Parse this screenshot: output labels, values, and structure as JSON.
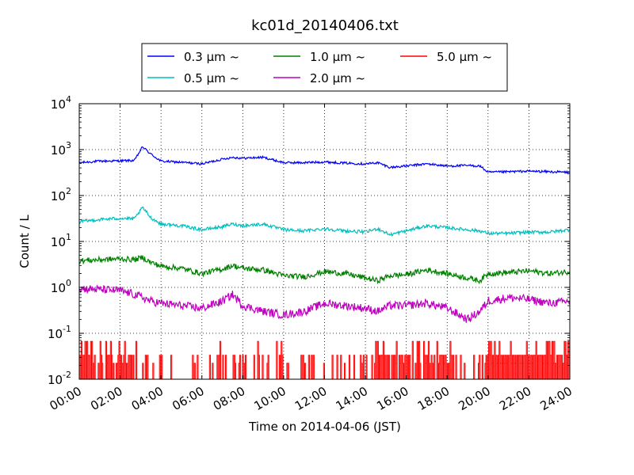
{
  "chart_data": {
    "type": "line",
    "title": "kc01d_20140406.txt",
    "xlabel": "Time on 2014-04-06 (JST)",
    "ylabel": "Count / L",
    "y_scale": "log",
    "ylim": [
      0.01,
      10000
    ],
    "xlim": [
      "00:00",
      "24:00"
    ],
    "x_ticks": [
      "00:00",
      "02:00",
      "04:00",
      "06:00",
      "08:00",
      "10:00",
      "12:00",
      "14:00",
      "16:00",
      "18:00",
      "20:00",
      "22:00",
      "24:00"
    ],
    "y_ticks": [
      {
        "base": "10",
        "exp": "-2"
      },
      {
        "base": "10",
        "exp": "-1"
      },
      {
        "base": "10",
        "exp": "0"
      },
      {
        "base": "10",
        "exp": "1"
      },
      {
        "base": "10",
        "exp": "2"
      },
      {
        "base": "10",
        "exp": "3"
      },
      {
        "base": "10",
        "exp": "4"
      }
    ],
    "grid": true,
    "legend_position": "top",
    "x_hours": [
      0,
      1,
      2,
      2.7,
      3.1,
      3.5,
      4,
      5,
      6,
      7,
      7.5,
      8,
      9,
      10,
      11,
      12,
      13,
      14,
      14.6,
      15.2,
      16,
      17,
      18,
      19,
      19.6,
      20,
      21,
      22,
      23,
      24
    ],
    "series": [
      {
        "name": "0.3 μm ~",
        "color": "#0000ff",
        "values": [
          520,
          560,
          570,
          580,
          1150,
          800,
          560,
          530,
          490,
          620,
          680,
          650,
          680,
          520,
          520,
          540,
          510,
          490,
          520,
          410,
          440,
          490,
          440,
          450,
          440,
          320,
          330,
          340,
          330,
          320
        ]
      },
      {
        "name": "0.5 μm ~",
        "color": "#00bfbf",
        "values": [
          27,
          30,
          32,
          31,
          55,
          33,
          24,
          22,
          18,
          21,
          24,
          22,
          24,
          18,
          17,
          19,
          17,
          16,
          19,
          14,
          17,
          22,
          20,
          18,
          17,
          15,
          15,
          16,
          16,
          18
        ]
      },
      {
        "name": "1.0 μm ~",
        "color": "#008000",
        "values": [
          3.8,
          4.0,
          4.2,
          4.0,
          4.5,
          3.5,
          2.9,
          2.6,
          2.0,
          2.5,
          3.0,
          2.6,
          2.4,
          1.8,
          1.7,
          2.2,
          2.0,
          1.6,
          1.4,
          1.8,
          1.9,
          2.4,
          2.0,
          1.6,
          1.4,
          2.0,
          2.1,
          2.3,
          2.0,
          2.2
        ]
      },
      {
        "name": "2.0 μm ~",
        "color": "#bf00bf",
        "values": [
          0.95,
          0.9,
          0.85,
          0.7,
          0.6,
          0.5,
          0.45,
          0.4,
          0.35,
          0.5,
          0.7,
          0.4,
          0.3,
          0.25,
          0.3,
          0.45,
          0.4,
          0.35,
          0.3,
          0.4,
          0.4,
          0.45,
          0.35,
          0.2,
          0.3,
          0.5,
          0.6,
          0.55,
          0.45,
          0.5
        ]
      },
      {
        "name": "5.0 μm ~",
        "color": "#ff0000",
        "values": [
          0.035,
          0.03,
          0.035,
          0.02,
          0.02,
          0.015,
          0.012,
          0.012,
          0.015,
          0.015,
          0.02,
          0.02,
          0.02,
          0.015,
          0.015,
          0.015,
          0.015,
          0.02,
          0.025,
          0.03,
          0.025,
          0.035,
          0.03,
          0.015,
          0.02,
          0.035,
          0.04,
          0.045,
          0.04,
          0.035
        ]
      }
    ]
  }
}
